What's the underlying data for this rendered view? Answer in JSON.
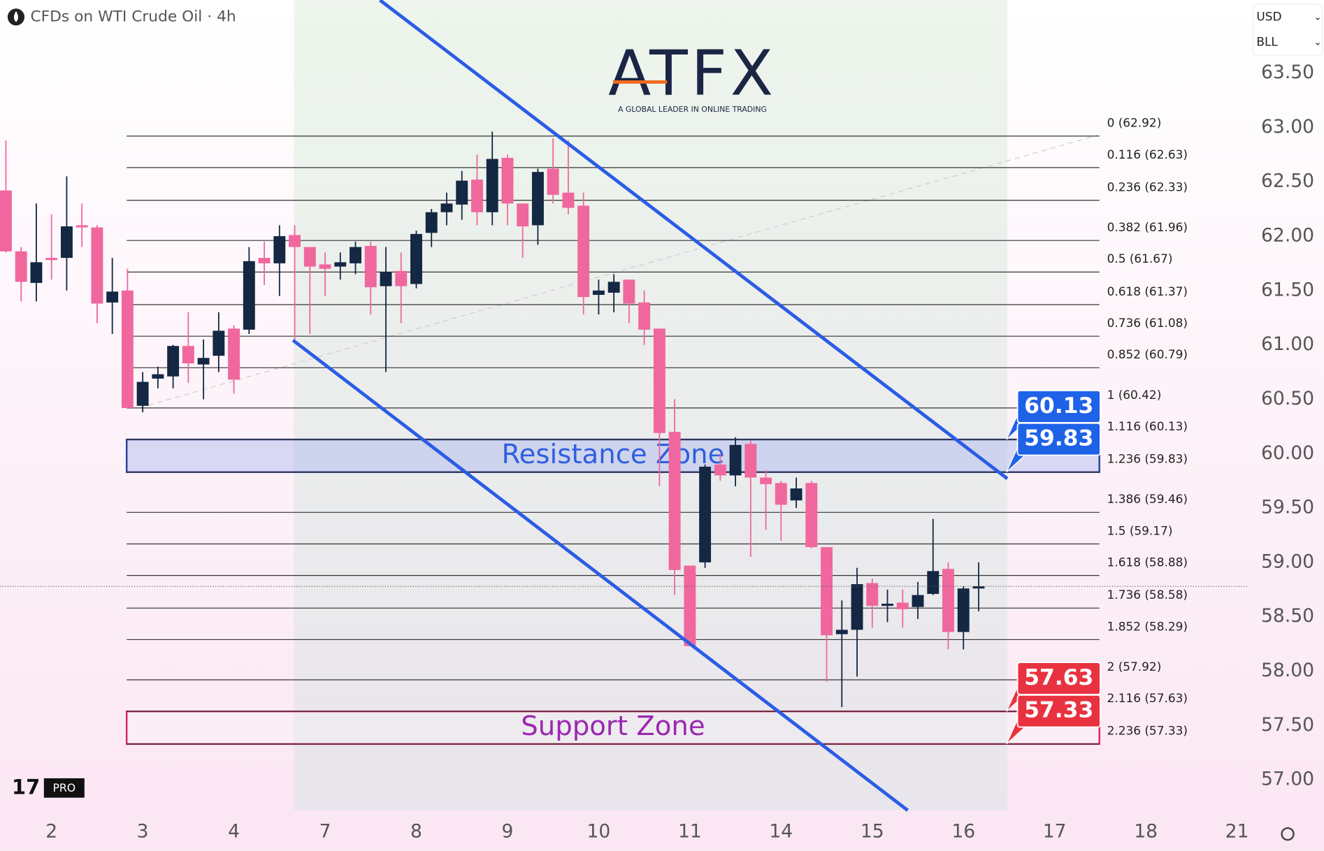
{
  "header": {
    "title": "CFDs on WTI Crude Oil · 4h",
    "currency": "USD",
    "unit": "BLL"
  },
  "logo": {
    "name": "ATFX",
    "tagline": "A GLOBAL LEADER IN ONLINE TRADING"
  },
  "badge": "PRO",
  "chart_data": {
    "type": "candlestick",
    "categories": [
      null,
      null,
      null,
      "2",
      null,
      null,
      null,
      null,
      null,
      "3",
      null,
      null,
      null,
      null,
      null,
      "4",
      null,
      null,
      null,
      null,
      null,
      "7",
      null,
      null,
      null,
      null,
      null,
      "8",
      null,
      null,
      null,
      null,
      null,
      "9",
      null,
      null,
      null,
      null,
      null,
      "10",
      null,
      null,
      null,
      null,
      null,
      "11",
      null,
      null,
      null,
      null,
      null,
      "14",
      null,
      null,
      null,
      null,
      null,
      "15",
      null,
      null,
      null,
      null,
      null,
      "16",
      null,
      null,
      null,
      null,
      null,
      "17",
      null,
      null,
      null,
      null,
      null,
      "18",
      null,
      null,
      null,
      null,
      null,
      "21"
    ],
    "open": [
      62.42,
      61.86,
      61.57,
      61.8,
      61.8,
      62.1,
      62.08,
      61.39,
      61.5,
      60.44,
      60.69,
      60.71,
      60.99,
      60.82,
      60.9,
      61.15,
      61.14,
      61.8,
      61.75,
      62.01,
      61.9,
      61.74,
      61.72,
      61.75,
      61.91,
      61.54,
      61.68,
      61.56,
      62.03,
      62.22,
      62.29,
      62.52,
      62.22,
      62.72,
      62.3,
      62.1,
      62.62,
      62.4,
      62.28,
      61.46,
      61.48,
      61.6,
      61.39,
      61.15,
      60.2,
      58.97,
      59.0,
      59.9,
      59.8,
      60.09,
      59.78,
      59.73,
      59.57,
      59.73,
      59.14,
      58.34,
      58.38,
      58.81,
      58.6,
      58.63,
      58.59,
      58.71,
      58.94,
      58.36,
      58.76,
      null,
      null,
      null,
      null,
      null,
      null,
      null,
      null,
      null,
      null,
      null,
      null,
      null,
      null,
      null,
      null,
      null
    ],
    "high": [
      62.88,
      61.9,
      62.3,
      62.2,
      62.55,
      62.3,
      62.1,
      61.8,
      61.7,
      60.75,
      60.8,
      61.0,
      61.3,
      61.05,
      61.3,
      61.18,
      61.9,
      61.95,
      62.1,
      62.1,
      61.9,
      61.85,
      61.85,
      61.95,
      61.95,
      61.9,
      61.85,
      62.05,
      62.25,
      62.4,
      62.6,
      62.75,
      62.96,
      62.75,
      62.3,
      62.62,
      62.9,
      62.88,
      62.4,
      61.6,
      61.65,
      61.6,
      61.5,
      61.15,
      60.5,
      58.97,
      59.9,
      60.0,
      60.15,
      60.12,
      59.85,
      59.75,
      59.78,
      59.75,
      59.14,
      58.65,
      58.95,
      58.85,
      58.75,
      58.75,
      58.82,
      59.4,
      59.0,
      58.78,
      59.0,
      null,
      null,
      null,
      null,
      null,
      null,
      null,
      null,
      null,
      null,
      null,
      null,
      null,
      null,
      null,
      null,
      null
    ],
    "low": [
      61.85,
      61.4,
      61.4,
      61.6,
      61.5,
      61.9,
      61.2,
      61.1,
      60.42,
      60.38,
      60.6,
      60.6,
      60.65,
      60.5,
      60.75,
      60.55,
      61.1,
      61.55,
      61.45,
      61.05,
      61.1,
      61.45,
      61.6,
      61.65,
      61.28,
      60.75,
      61.2,
      61.52,
      61.9,
      62.1,
      62.15,
      62.1,
      62.1,
      62.1,
      61.8,
      61.92,
      62.3,
      62.2,
      61.28,
      61.28,
      61.3,
      61.2,
      61.0,
      59.7,
      58.7,
      58.23,
      58.95,
      59.75,
      59.7,
      59.05,
      59.3,
      59.2,
      59.5,
      59.13,
      57.9,
      57.67,
      57.95,
      58.4,
      58.45,
      58.4,
      58.48,
      58.7,
      58.2,
      58.2,
      58.55,
      null,
      null,
      null,
      null,
      null,
      null,
      null,
      null,
      null,
      null,
      null,
      null,
      null,
      null,
      null,
      null,
      null
    ],
    "close": [
      61.86,
      61.58,
      61.76,
      61.78,
      62.09,
      62.08,
      61.38,
      61.49,
      60.42,
      60.66,
      60.73,
      60.99,
      60.83,
      60.88,
      61.13,
      60.68,
      61.77,
      61.75,
      62.0,
      61.9,
      61.72,
      61.7,
      61.76,
      61.9,
      61.53,
      61.67,
      61.54,
      62.02,
      62.22,
      62.3,
      62.51,
      62.22,
      62.71,
      62.3,
      62.09,
      62.59,
      62.38,
      62.26,
      61.44,
      61.5,
      61.58,
      61.38,
      61.14,
      60.19,
      58.93,
      58.23,
      59.88,
      59.8,
      60.08,
      59.78,
      59.72,
      59.53,
      59.68,
      59.14,
      58.33,
      58.38,
      58.8,
      58.6,
      58.62,
      58.57,
      58.7,
      58.92,
      58.36,
      58.76,
      58.78,
      null,
      null,
      null,
      null,
      null,
      null,
      null,
      null,
      null,
      null,
      null,
      null,
      null,
      null,
      null,
      null,
      null
    ],
    "up_color": "#142743",
    "down_color": "#f0679e",
    "ylim": [
      56.72,
      64.17
    ],
    "yticks": [
      {
        "value": 57,
        "label": "57.00"
      },
      {
        "value": 57.5,
        "label": "57.50"
      },
      {
        "value": 58,
        "label": "58.00"
      },
      {
        "value": 58.5,
        "label": "58.50"
      },
      {
        "value": 59,
        "label": "59.00"
      },
      {
        "value": 59.5,
        "label": "59.50"
      },
      {
        "value": 60,
        "label": "60.00"
      },
      {
        "value": 60.5,
        "label": "60.50"
      },
      {
        "value": 61,
        "label": "61.00"
      },
      {
        "value": 61.5,
        "label": "61.50"
      },
      {
        "value": 62,
        "label": "62.00"
      },
      {
        "value": 62.5,
        "label": "62.50"
      },
      {
        "value": 63,
        "label": "63.00"
      },
      {
        "value": 63.5,
        "label": "63.50"
      }
    ],
    "fib_levels": [
      {
        "value": 62.92,
        "label": "0 (62.92)"
      },
      {
        "value": 62.63,
        "label": "0.116 (62.63)"
      },
      {
        "value": 62.33,
        "label": "0.236 (62.33)"
      },
      {
        "value": 61.96,
        "label": "0.382 (61.96)"
      },
      {
        "value": 61.67,
        "label": "0.5 (61.67)"
      },
      {
        "value": 61.37,
        "label": "0.618 (61.37)"
      },
      {
        "value": 61.08,
        "label": "0.736 (61.08)"
      },
      {
        "value": 60.79,
        "label": "0.852 (60.79)"
      },
      {
        "value": 60.42,
        "label": "1 (60.42)"
      },
      {
        "value": 60.13,
        "label": "1.116 (60.13)"
      },
      {
        "value": 59.83,
        "label": "1.236 (59.83)"
      },
      {
        "value": 59.46,
        "label": "1.386 (59.46)"
      },
      {
        "value": 59.17,
        "label": "1.5 (59.17)"
      },
      {
        "value": 58.88,
        "label": "1.618 (58.88)"
      },
      {
        "value": 58.58,
        "label": "1.736 (58.58)"
      },
      {
        "value": 58.29,
        "label": "1.852 (58.29)"
      },
      {
        "value": 57.92,
        "label": "2 (57.92)"
      },
      {
        "value": 57.63,
        "label": "2.116 (57.63)"
      },
      {
        "value": 57.33,
        "label": "2.236 (57.33)"
      }
    ],
    "zones": [
      {
        "label": "Resistance Zone",
        "range": [
          59.83,
          60.13
        ],
        "fill": "rgba(170,185,240,0.45)",
        "stroke": "#2a3f9b",
        "text_color": "#2f5fe0"
      },
      {
        "label": "Support Zone",
        "range": [
          57.33,
          57.63
        ],
        "fill": "rgba(255,255,255,0.2)",
        "stroke": "#d6245a",
        "text_color": "#9c27b0"
      }
    ],
    "price_tags": [
      {
        "value": 60.13,
        "color": "#1e62e8"
      },
      {
        "value": 59.83,
        "color": "#1e62e8"
      },
      {
        "value": 57.63,
        "color": "#e8323f"
      },
      {
        "value": 57.33,
        "color": "#e8323f"
      }
    ]
  }
}
